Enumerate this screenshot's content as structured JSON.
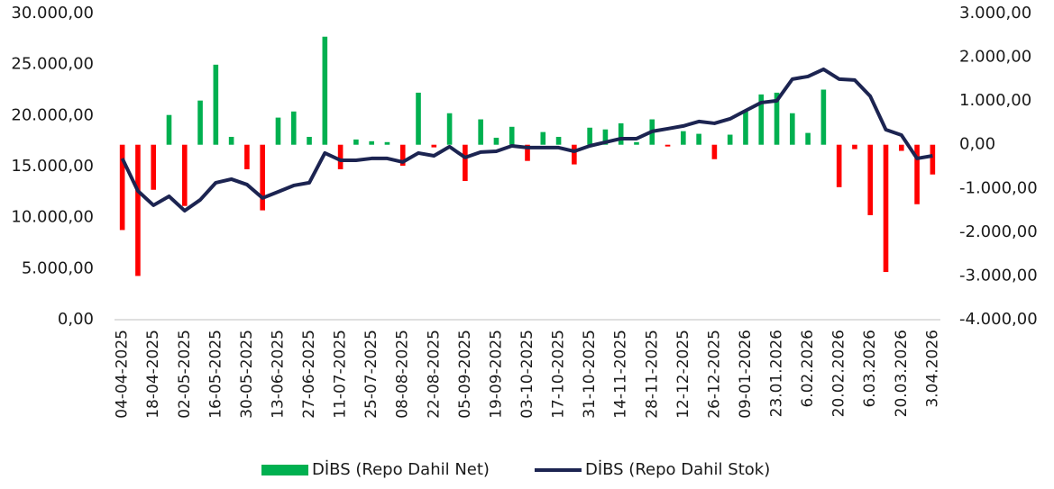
{
  "chart_data": {
    "type": "bar_line",
    "categories": [
      "04-04-2025",
      null,
      "18-04-2025",
      null,
      "02-05-2025",
      null,
      "16-05-2025",
      null,
      "30-05-2025",
      null,
      "13-06-2025",
      null,
      "27-06-2025",
      null,
      "11-07-2025",
      null,
      "25-07-2025",
      null,
      "08-08-2025",
      null,
      "22-08-2025",
      null,
      "05-09-2025",
      null,
      "19-09-2025",
      null,
      "03-10-2025",
      null,
      "17-10-2025",
      null,
      "31-10-2025",
      null,
      "14-11-2025",
      null,
      "28-11-2025",
      null,
      "12-12-2025",
      null,
      "26-12-2025",
      null,
      "09-01-2026",
      null,
      "23.01.2026",
      null,
      "6.02.2026",
      null,
      "20.02.2026",
      null,
      "6.03.2026",
      null,
      "20.03.2026",
      null,
      "3.04.2026"
    ],
    "series": [
      {
        "name": "DİBS (Repo Dahil Net)",
        "type": "bar",
        "axis": "y2",
        "color": "#00b050",
        "negative_color": "#ff0000",
        "values": [
          -1950,
          -3000,
          -1030,
          680,
          -1400,
          1010,
          1830,
          180,
          -560,
          -1500,
          620,
          760,
          180,
          2470,
          -560,
          120,
          80,
          60,
          -480,
          1190,
          -60,
          720,
          -830,
          580,
          160,
          410,
          -370,
          290,
          180,
          -450,
          390,
          350,
          490,
          60,
          580,
          -40,
          310,
          250,
          -330,
          230,
          760,
          1150,
          1190,
          720,
          270,
          1260,
          -970,
          -100,
          -1610,
          -2910,
          -140,
          -1360,
          -680
        ]
      },
      {
        "name": "DİBS (Repo Dahil Stok)",
        "type": "line",
        "axis": "y",
        "color": "#1c2451",
        "values": [
          15800,
          12620,
          11210,
          12090,
          10680,
          11740,
          13420,
          13770,
          13240,
          11920,
          12530,
          13150,
          13420,
          16330,
          15620,
          15620,
          15800,
          15800,
          15450,
          16330,
          16060,
          16950,
          15890,
          16420,
          16500,
          17030,
          16860,
          16860,
          16860,
          16500,
          17030,
          17390,
          17740,
          17740,
          18450,
          18710,
          18980,
          19420,
          19240,
          19680,
          20480,
          21270,
          21450,
          23570,
          23830,
          24540,
          23570,
          23480,
          21890,
          18620,
          18090,
          15800,
          16060
        ]
      }
    ],
    "ylim": [
      0,
      30000
    ],
    "yticks": [
      {
        "value": 0,
        "label": "0,00"
      },
      {
        "value": 5000,
        "label": "5.000,00"
      },
      {
        "value": 10000,
        "label": "10.000,00"
      },
      {
        "value": 15000,
        "label": "15.000,00"
      },
      {
        "value": 20000,
        "label": "20.000,00"
      },
      {
        "value": 25000,
        "label": "25.000,00"
      },
      {
        "value": 30000,
        "label": "30.000,00"
      }
    ],
    "y2lim": [
      -4000,
      3000
    ],
    "y2ticks": [
      {
        "value": -4000,
        "label": "-4.000,00"
      },
      {
        "value": -3000,
        "label": "-3.000,00"
      },
      {
        "value": -2000,
        "label": "-2.000,00"
      },
      {
        "value": -1000,
        "label": "-1.000,00"
      },
      {
        "value": 0,
        "label": "0,00"
      },
      {
        "value": 1000,
        "label": "1.000,00"
      },
      {
        "value": 2000,
        "label": "2.000,00"
      },
      {
        "value": 3000,
        "label": "3.000,00"
      }
    ],
    "legend": "bottom"
  }
}
